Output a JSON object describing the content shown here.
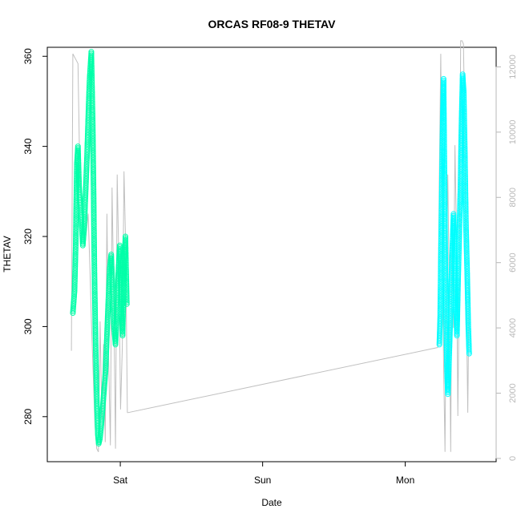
{
  "chart_data": {
    "type": "scatter",
    "title": "ORCAS RF08-9 THETAV",
    "xlabel": "Date",
    "ylabel": "THETAV",
    "x_ticks": [
      "Sat",
      "Sun",
      "Mon"
    ],
    "xlim": [
      0.46,
      2.04
    ],
    "ylim_left": [
      270,
      362
    ],
    "ylim_right": [
      -100,
      12600
    ],
    "left_ticks": [
      280,
      300,
      320,
      340,
      360
    ],
    "right_ticks": [
      0,
      2000,
      4000,
      6000,
      8000,
      10000,
      12000
    ],
    "grid": false,
    "series": [
      {
        "axis": "left",
        "style": "open-circle markers",
        "color": "#00ffff",
        "color_alt": "#00ffa8",
        "points": [
          [
            0.55,
            303
          ],
          [
            0.556,
            308
          ],
          [
            0.56,
            318
          ],
          [
            0.564,
            336
          ],
          [
            0.568,
            340
          ],
          [
            0.572,
            331
          ],
          [
            0.576,
            327
          ],
          [
            0.58,
            324
          ],
          [
            0.585,
            318
          ],
          [
            0.59,
            322
          ],
          [
            0.595,
            330
          ],
          [
            0.6,
            338
          ],
          [
            0.603,
            344
          ],
          [
            0.606,
            350
          ],
          [
            0.609,
            355
          ],
          [
            0.612,
            358
          ],
          [
            0.615,
            361
          ],
          [
            0.617,
            355
          ],
          [
            0.62,
            345
          ],
          [
            0.623,
            330
          ],
          [
            0.626,
            312
          ],
          [
            0.629,
            300
          ],
          [
            0.632,
            290
          ],
          [
            0.635,
            282
          ],
          [
            0.638,
            276
          ],
          [
            0.641,
            274
          ],
          [
            0.645,
            275
          ],
          [
            0.65,
            278
          ],
          [
            0.655,
            282
          ],
          [
            0.66,
            286
          ],
          [
            0.665,
            290
          ],
          [
            0.67,
            298
          ],
          [
            0.675,
            306
          ],
          [
            0.68,
            313
          ],
          [
            0.685,
            316
          ],
          [
            0.69,
            308
          ],
          [
            0.695,
            300
          ],
          [
            0.7,
            296
          ],
          [
            0.705,
            304
          ],
          [
            0.71,
            312
          ],
          [
            0.715,
            318
          ],
          [
            0.72,
            305
          ],
          [
            0.725,
            298
          ],
          [
            0.73,
            312
          ],
          [
            0.735,
            320
          ],
          [
            0.74,
            305
          ],
          [
            1.84,
            296
          ],
          [
            1.843,
            302
          ],
          [
            1.846,
            318
          ],
          [
            1.849,
            332
          ],
          [
            1.852,
            346
          ],
          [
            1.855,
            355
          ],
          [
            1.858,
            335
          ],
          [
            1.861,
            315
          ],
          [
            1.864,
            300
          ],
          [
            1.867,
            290
          ],
          [
            1.87,
            285
          ],
          [
            1.874,
            292
          ],
          [
            1.878,
            300
          ],
          [
            1.882,
            310
          ],
          [
            1.886,
            318
          ],
          [
            1.89,
            325
          ],
          [
            1.894,
            315
          ],
          [
            1.898,
            305
          ],
          [
            1.902,
            298
          ],
          [
            1.906,
            310
          ],
          [
            1.91,
            320
          ],
          [
            1.914,
            330
          ],
          [
            1.918,
            345
          ],
          [
            1.922,
            356
          ],
          [
            1.926,
            352
          ],
          [
            1.93,
            338
          ],
          [
            1.934,
            322
          ],
          [
            1.938,
            312
          ],
          [
            1.942,
            300
          ],
          [
            1.945,
            294
          ]
        ]
      },
      {
        "axis": "right",
        "style": "thin line",
        "color": "#c0c0c0",
        "points": [
          [
            0.545,
            3300
          ],
          [
            0.55,
            12400
          ],
          [
            0.556,
            12300
          ],
          [
            0.562,
            12200
          ],
          [
            0.568,
            12100
          ],
          [
            0.574,
            9000
          ],
          [
            0.58,
            8000
          ],
          [
            0.586,
            7200
          ],
          [
            0.592,
            6500
          ],
          [
            0.598,
            7000
          ],
          [
            0.604,
            7500
          ],
          [
            0.61,
            5800
          ],
          [
            0.616,
            4000
          ],
          [
            0.622,
            2500
          ],
          [
            0.628,
            1000
          ],
          [
            0.634,
            300
          ],
          [
            0.64,
            200
          ],
          [
            0.646,
            4200
          ],
          [
            0.652,
            1200
          ],
          [
            0.658,
            3500
          ],
          [
            0.664,
            500
          ],
          [
            0.67,
            7500
          ],
          [
            0.676,
            3000
          ],
          [
            0.682,
            400
          ],
          [
            0.688,
            8300
          ],
          [
            0.694,
            5000
          ],
          [
            0.7,
            300
          ],
          [
            0.706,
            8700
          ],
          [
            0.712,
            6000
          ],
          [
            0.718,
            1500
          ],
          [
            0.724,
            3400
          ],
          [
            0.73,
            8800
          ],
          [
            0.736,
            6500
          ],
          [
            0.742,
            1400
          ],
          [
            1.835,
            3400
          ],
          [
            1.84,
            8500
          ],
          [
            1.845,
            12400
          ],
          [
            1.85,
            7500
          ],
          [
            1.855,
            3000
          ],
          [
            1.86,
            200
          ],
          [
            1.865,
            6000
          ],
          [
            1.87,
            8700
          ],
          [
            1.875,
            5000
          ],
          [
            1.88,
            200
          ],
          [
            1.885,
            7500
          ],
          [
            1.89,
            4000
          ],
          [
            1.895,
            9600
          ],
          [
            1.9,
            7000
          ],
          [
            1.905,
            1300
          ],
          [
            1.91,
            5000
          ],
          [
            1.915,
            12800
          ],
          [
            1.92,
            12800
          ],
          [
            1.925,
            12700
          ],
          [
            1.93,
            10000
          ],
          [
            1.935,
            4800
          ],
          [
            1.94,
            1400
          ],
          [
            1.945,
            5500
          ]
        ]
      }
    ],
    "connector": {
      "axis": "right",
      "color": "#c0c0c0",
      "from": [
        0.742,
        1400
      ],
      "to": [
        1.835,
        3400
      ]
    }
  }
}
